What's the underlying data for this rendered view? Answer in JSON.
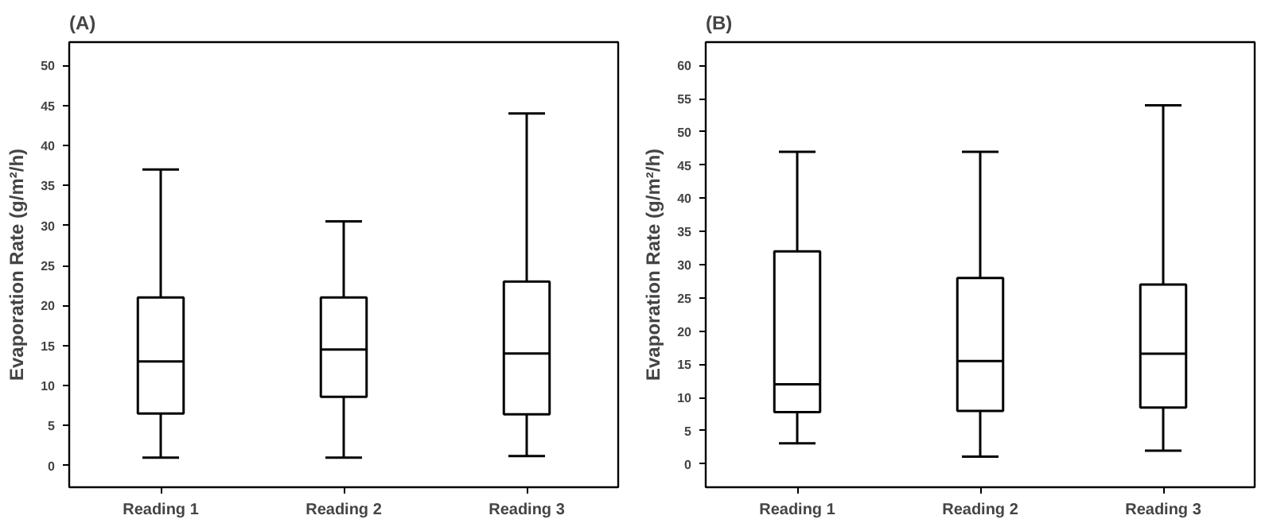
{
  "chart_data": [
    {
      "type": "box",
      "title": "(A)",
      "ylabel": "Evaporation Rate (g/m²/h)",
      "categories": [
        "Reading 1",
        "Reading 2",
        "Reading 3"
      ],
      "ylim": [
        -2.7,
        52.9
      ],
      "yticks": [
        0,
        5,
        10,
        15,
        20,
        25,
        30,
        35,
        40,
        45,
        50
      ],
      "grid": false,
      "boxes": [
        {
          "low": 1,
          "q1": 6.5,
          "median": 13,
          "q3": 21,
          "high": 37
        },
        {
          "low": 1,
          "q1": 8.6,
          "median": 14.5,
          "q3": 21,
          "high": 30.5
        },
        {
          "low": 1.2,
          "q1": 6.4,
          "median": 14,
          "q3": 23,
          "high": 44
        }
      ]
    },
    {
      "type": "box",
      "title": "(B)",
      "ylabel": "Evaporation Rate (g/m²/h)",
      "categories": [
        "Reading 1",
        "Reading 2",
        "Reading 3"
      ],
      "ylim": [
        -3.5,
        63.5
      ],
      "yticks": [
        0,
        5,
        10,
        15,
        20,
        25,
        30,
        35,
        40,
        45,
        50,
        55,
        60
      ],
      "grid": false,
      "boxes": [
        {
          "low": 3.1,
          "q1": 7.8,
          "median": 12,
          "q3": 32,
          "high": 47
        },
        {
          "low": 1.1,
          "q1": 8,
          "median": 15.5,
          "q3": 28,
          "high": 47
        },
        {
          "low": 2,
          "q1": 8.5,
          "median": 16.6,
          "q3": 27,
          "high": 54
        }
      ]
    }
  ]
}
